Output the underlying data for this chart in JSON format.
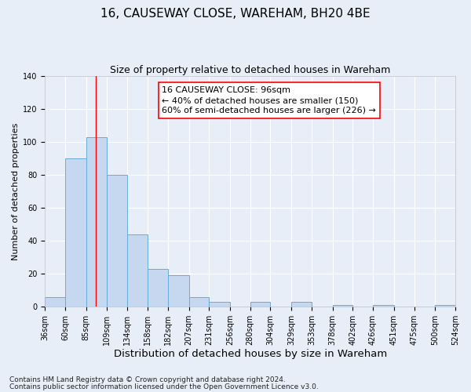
{
  "title": "16, CAUSEWAY CLOSE, WAREHAM, BH20 4BE",
  "subtitle": "Size of property relative to detached houses in Wareham",
  "xlabel": "Distribution of detached houses by size in Wareham",
  "ylabel": "Number of detached properties",
  "bar_edges": [
    36,
    60,
    85,
    109,
    134,
    158,
    182,
    207,
    231,
    256,
    280,
    304,
    329,
    353,
    378,
    402,
    426,
    451,
    475,
    500,
    524
  ],
  "bar_heights": [
    6,
    90,
    103,
    80,
    44,
    23,
    19,
    6,
    3,
    0,
    3,
    0,
    3,
    0,
    1,
    0,
    1,
    0,
    0,
    1
  ],
  "tick_labels": [
    "36sqm",
    "60sqm",
    "85sqm",
    "109sqm",
    "134sqm",
    "158sqm",
    "182sqm",
    "207sqm",
    "231sqm",
    "256sqm",
    "280sqm",
    "304sqm",
    "329sqm",
    "353sqm",
    "378sqm",
    "402sqm",
    "426sqm",
    "451sqm",
    "475sqm",
    "500sqm",
    "524sqm"
  ],
  "bar_color": "#c5d8f0",
  "bar_edge_color": "#6aaad4",
  "redline_x": 96,
  "ylim": [
    0,
    140
  ],
  "yticks": [
    0,
    20,
    40,
    60,
    80,
    100,
    120,
    140
  ],
  "annotation_line1": "16 CAUSEWAY CLOSE: 96sqm",
  "annotation_line2": "← 40% of detached houses are smaller (150)",
  "annotation_line3": "60% of semi-detached houses are larger (226) →",
  "footer_line1": "Contains HM Land Registry data © Crown copyright and database right 2024.",
  "footer_line2": "Contains public sector information licensed under the Open Government Licence v3.0.",
  "background_color": "#e8eef8",
  "plot_bg_color": "#e8eef8",
  "grid_color": "#ffffff",
  "title_fontsize": 11,
  "subtitle_fontsize": 9,
  "xlabel_fontsize": 9.5,
  "ylabel_fontsize": 8,
  "tick_fontsize": 7,
  "annotation_fontsize": 8,
  "footer_fontsize": 6.5
}
